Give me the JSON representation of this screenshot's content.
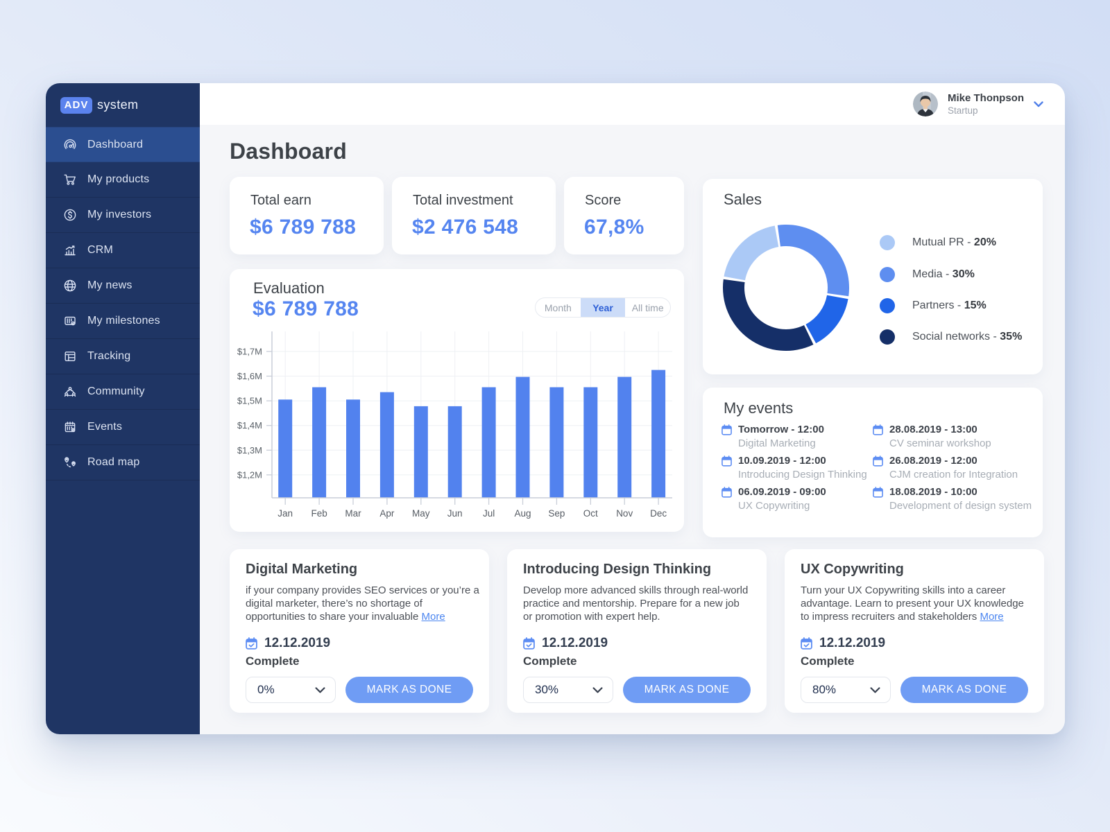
{
  "brand": {
    "badge": "ADV",
    "name": "system"
  },
  "sidebar": {
    "items": [
      {
        "label": "Dashboard",
        "icon": "gauge-icon",
        "active": true
      },
      {
        "label": "My products",
        "icon": "cart-icon",
        "active": false
      },
      {
        "label": "My investors",
        "icon": "dollar-coin-icon",
        "active": false
      },
      {
        "label": "CRM",
        "icon": "bar-chart-icon",
        "active": false
      },
      {
        "label": "My news",
        "icon": "globe-icon",
        "active": false
      },
      {
        "label": "My milestones",
        "icon": "milestones-icon",
        "active": false
      },
      {
        "label": "Tracking",
        "icon": "layout-table-icon",
        "active": false
      },
      {
        "label": "Community",
        "icon": "people-network-icon",
        "active": false
      },
      {
        "label": "Events",
        "icon": "calendar-grid-icon",
        "active": false
      },
      {
        "label": "Road map",
        "icon": "route-pins-icon",
        "active": false
      }
    ]
  },
  "topbar": {
    "user_name": "Mike Thonpson",
    "user_role": "Startup"
  },
  "page": {
    "title": "Dashboard"
  },
  "stats": [
    {
      "label": "Total earn",
      "value": "$6 789 788"
    },
    {
      "label": "Total investment",
      "value": "$2 476 548"
    },
    {
      "label": "Score",
      "value": "67,8%"
    }
  ],
  "evaluation": {
    "title": "Evaluation",
    "amount": "$6 789 788",
    "range_options": [
      "Month",
      "Year",
      "All time"
    ],
    "selected_range": "Year"
  },
  "chart_data": [
    {
      "type": "bar",
      "title": "Evaluation",
      "categories": [
        "Jan",
        "Feb",
        "Mar",
        "Apr",
        "May",
        "Jun",
        "Jul",
        "Aug",
        "Sep",
        "Oct",
        "Nov",
        "Dec"
      ],
      "values": [
        1.505,
        1.555,
        1.505,
        1.535,
        1.478,
        1.478,
        1.555,
        1.597,
        1.555,
        1.555,
        1.597,
        1.625
      ],
      "unit": "$M",
      "xlabel": "",
      "ylabel": "",
      "ylim": [
        1.107,
        1.76
      ],
      "y_ticks": [
        {
          "value": 1.7,
          "label": "$1,7M"
        },
        {
          "value": 1.6,
          "label": "$1,6M"
        },
        {
          "value": 1.5,
          "label": "$1,5M"
        },
        {
          "value": 1.4,
          "label": "$1,4M"
        },
        {
          "value": 1.3,
          "label": "$1,3M"
        },
        {
          "value": 1.2,
          "label": "$1,2M"
        }
      ],
      "grid": true,
      "bar_color": "#5282ee"
    },
    {
      "type": "pie",
      "title": "Sales",
      "donut": true,
      "start_angle_deg": -9,
      "clockwise": true,
      "draw_order": [
        1,
        2,
        3,
        0
      ],
      "slices": [
        {
          "label": "Mutual PR",
          "value": 20,
          "pct_label": "20%",
          "color": "#abc9f6"
        },
        {
          "label": "Media",
          "value": 30,
          "pct_label": "30%",
          "color": "#5e8ef0"
        },
        {
          "label": "Partners",
          "value": 15,
          "pct_label": "15%",
          "color": "#2065e8"
        },
        {
          "label": "Social networks",
          "value": 35,
          "pct_label": "35%",
          "color": "#152f68"
        }
      ],
      "legend_position": "right"
    }
  ],
  "sales": {
    "title": "Sales"
  },
  "events": {
    "title": "My events",
    "items": [
      {
        "datetime": "Tomorrow - 12:00",
        "title": "Digital Marketing"
      },
      {
        "datetime": "10.09.2019 - 12:00",
        "title": "Introducing Design Thinking"
      },
      {
        "datetime": "06.09.2019 - 09:00",
        "title": "UX Copywriting"
      },
      {
        "datetime": "28.08.2019 - 13:00",
        "title": "CV seminar workshop"
      },
      {
        "datetime": "26.08.2019 - 12:00",
        "title": "CJM creation for Integration"
      },
      {
        "datetime": "18.08.2019 - 10:00",
        "title": "Development of design system"
      }
    ]
  },
  "tasks": [
    {
      "title": "Digital Marketing",
      "description": "if your company provides SEO services or you’re a digital marketer, there’s no shortage of opportunities to share your invaluable",
      "more_label": "More",
      "date": "12.12.2019",
      "complete_label": "Complete",
      "progress": "0%",
      "button_label": "MARK AS DONE"
    },
    {
      "title": "Introducing Design Thinking",
      "description": "Develop more advanced skills through real-world practice and mentorship. Prepare for a new job or promotion with expert help.",
      "more_label": "",
      "date": "12.12.2019",
      "complete_label": "Complete",
      "progress": "30%",
      "button_label": "MARK AS DONE"
    },
    {
      "title": "UX Copywriting",
      "description": "Turn your UX Copywriting skills into a career advantage. Learn to present your UX knowledge to impress recruiters and stakeholders",
      "more_label": "More",
      "date": "12.12.2019",
      "complete_label": "Complete",
      "progress": "80%",
      "button_label": "MARK AS DONE"
    }
  ],
  "colors": {
    "accent_blue": "#5282ee",
    "number_blue": "#5585f0",
    "button_blue": "#6f9cf4",
    "link_blue": "#4c86f0",
    "sidebar_navy": "#1f3564",
    "sidebar_active": "#2b4e90",
    "badge_blue": "#5b83ee",
    "selected_range_bg": "#ccdcf8",
    "selected_range_text": "#2d5fd6",
    "content_bg": "#f5f6f9",
    "donut_mutual_pr": "#abc9f6",
    "donut_media": "#5e8ef0",
    "donut_partners": "#2065e8",
    "donut_social": "#152f68"
  }
}
